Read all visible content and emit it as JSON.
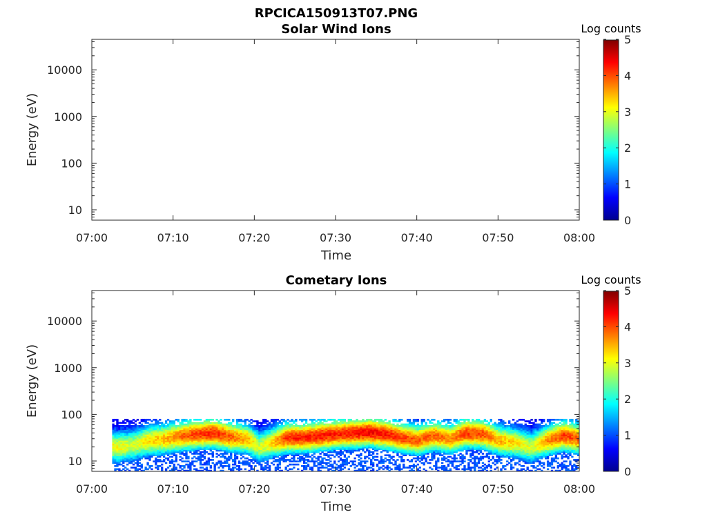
{
  "figure_title": "RPCICA150913T07.PNG",
  "chart_data": [
    {
      "type": "heatmap",
      "title": "Solar Wind Ions",
      "xlabel": "Time",
      "ylabel": "Energy (eV)",
      "x_ticks": [
        "07:00",
        "07:10",
        "07:20",
        "07:30",
        "07:40",
        "07:50",
        "08:00"
      ],
      "x_range": [
        "07:00",
        "08:00"
      ],
      "y_scale": "log",
      "y_ticks": [
        10,
        100,
        1000,
        10000
      ],
      "y_tick_labels": [
        "10",
        "100",
        "1000",
        "10000"
      ],
      "y_range": [
        6,
        45000
      ],
      "colorbar": {
        "label": "Log counts",
        "range": [
          0,
          5
        ],
        "ticks": [
          "0",
          "1",
          "2",
          "3",
          "4",
          "5"
        ],
        "colormap": "jet"
      },
      "data_present": false,
      "data_note": "",
      "band": []
    },
    {
      "type": "heatmap",
      "title": "Cometary Ions",
      "xlabel": "Time",
      "ylabel": "Energy (eV)",
      "x_ticks": [
        "07:00",
        "07:10",
        "07:20",
        "07:30",
        "07:40",
        "07:50",
        "08:00"
      ],
      "x_range": [
        "07:00",
        "08:00"
      ],
      "y_scale": "log",
      "y_ticks": [
        10,
        100,
        1000,
        10000
      ],
      "y_tick_labels": [
        "10",
        "100",
        "1000",
        "10000"
      ],
      "y_range": [
        6,
        45000
      ],
      "colorbar": {
        "label": "Log counts",
        "range": [
          0,
          5
        ],
        "ticks": [
          "0",
          "1",
          "2",
          "3",
          "4",
          "5"
        ],
        "colormap": "jet"
      },
      "data_present": true,
      "data_start_min": 2.5,
      "data_energy_range": [
        6,
        80
      ],
      "band": [
        {
          "t": 3,
          "e": 20,
          "peak": 2.8
        },
        {
          "t": 5,
          "e": 22,
          "peak": 2.6
        },
        {
          "t": 7,
          "e": 28,
          "peak": 3.0
        },
        {
          "t": 9,
          "e": 30,
          "peak": 3.2
        },
        {
          "t": 11,
          "e": 35,
          "peak": 3.6
        },
        {
          "t": 13,
          "e": 38,
          "peak": 3.8
        },
        {
          "t": 15,
          "e": 40,
          "peak": 3.9
        },
        {
          "t": 17,
          "e": 33,
          "peak": 3.6
        },
        {
          "t": 19,
          "e": 30,
          "peak": 3.2
        },
        {
          "t": 20.5,
          "e": 20,
          "peak": 2.6
        },
        {
          "t": 22,
          "e": 25,
          "peak": 3.0
        },
        {
          "t": 24,
          "e": 32,
          "peak": 3.9
        },
        {
          "t": 26,
          "e": 32,
          "peak": 3.9
        },
        {
          "t": 28,
          "e": 35,
          "peak": 4.0
        },
        {
          "t": 30,
          "e": 38,
          "peak": 3.9
        },
        {
          "t": 32,
          "e": 40,
          "peak": 4.0
        },
        {
          "t": 34,
          "e": 42,
          "peak": 4.1
        },
        {
          "t": 36,
          "e": 38,
          "peak": 4.0
        },
        {
          "t": 38,
          "e": 32,
          "peak": 3.8
        },
        {
          "t": 40,
          "e": 28,
          "peak": 3.6
        },
        {
          "t": 42,
          "e": 35,
          "peak": 3.6
        },
        {
          "t": 44,
          "e": 30,
          "peak": 3.4
        },
        {
          "t": 46,
          "e": 40,
          "peak": 3.8
        },
        {
          "t": 48,
          "e": 38,
          "peak": 3.7
        },
        {
          "t": 50,
          "e": 28,
          "peak": 3.2
        },
        {
          "t": 52,
          "e": 25,
          "peak": 3.0
        },
        {
          "t": 54,
          "e": 20,
          "peak": 2.6
        },
        {
          "t": 56,
          "e": 28,
          "peak": 3.4
        },
        {
          "t": 58,
          "e": 35,
          "peak": 3.8
        },
        {
          "t": 60,
          "e": 30,
          "peak": 3.6
        }
      ]
    }
  ]
}
